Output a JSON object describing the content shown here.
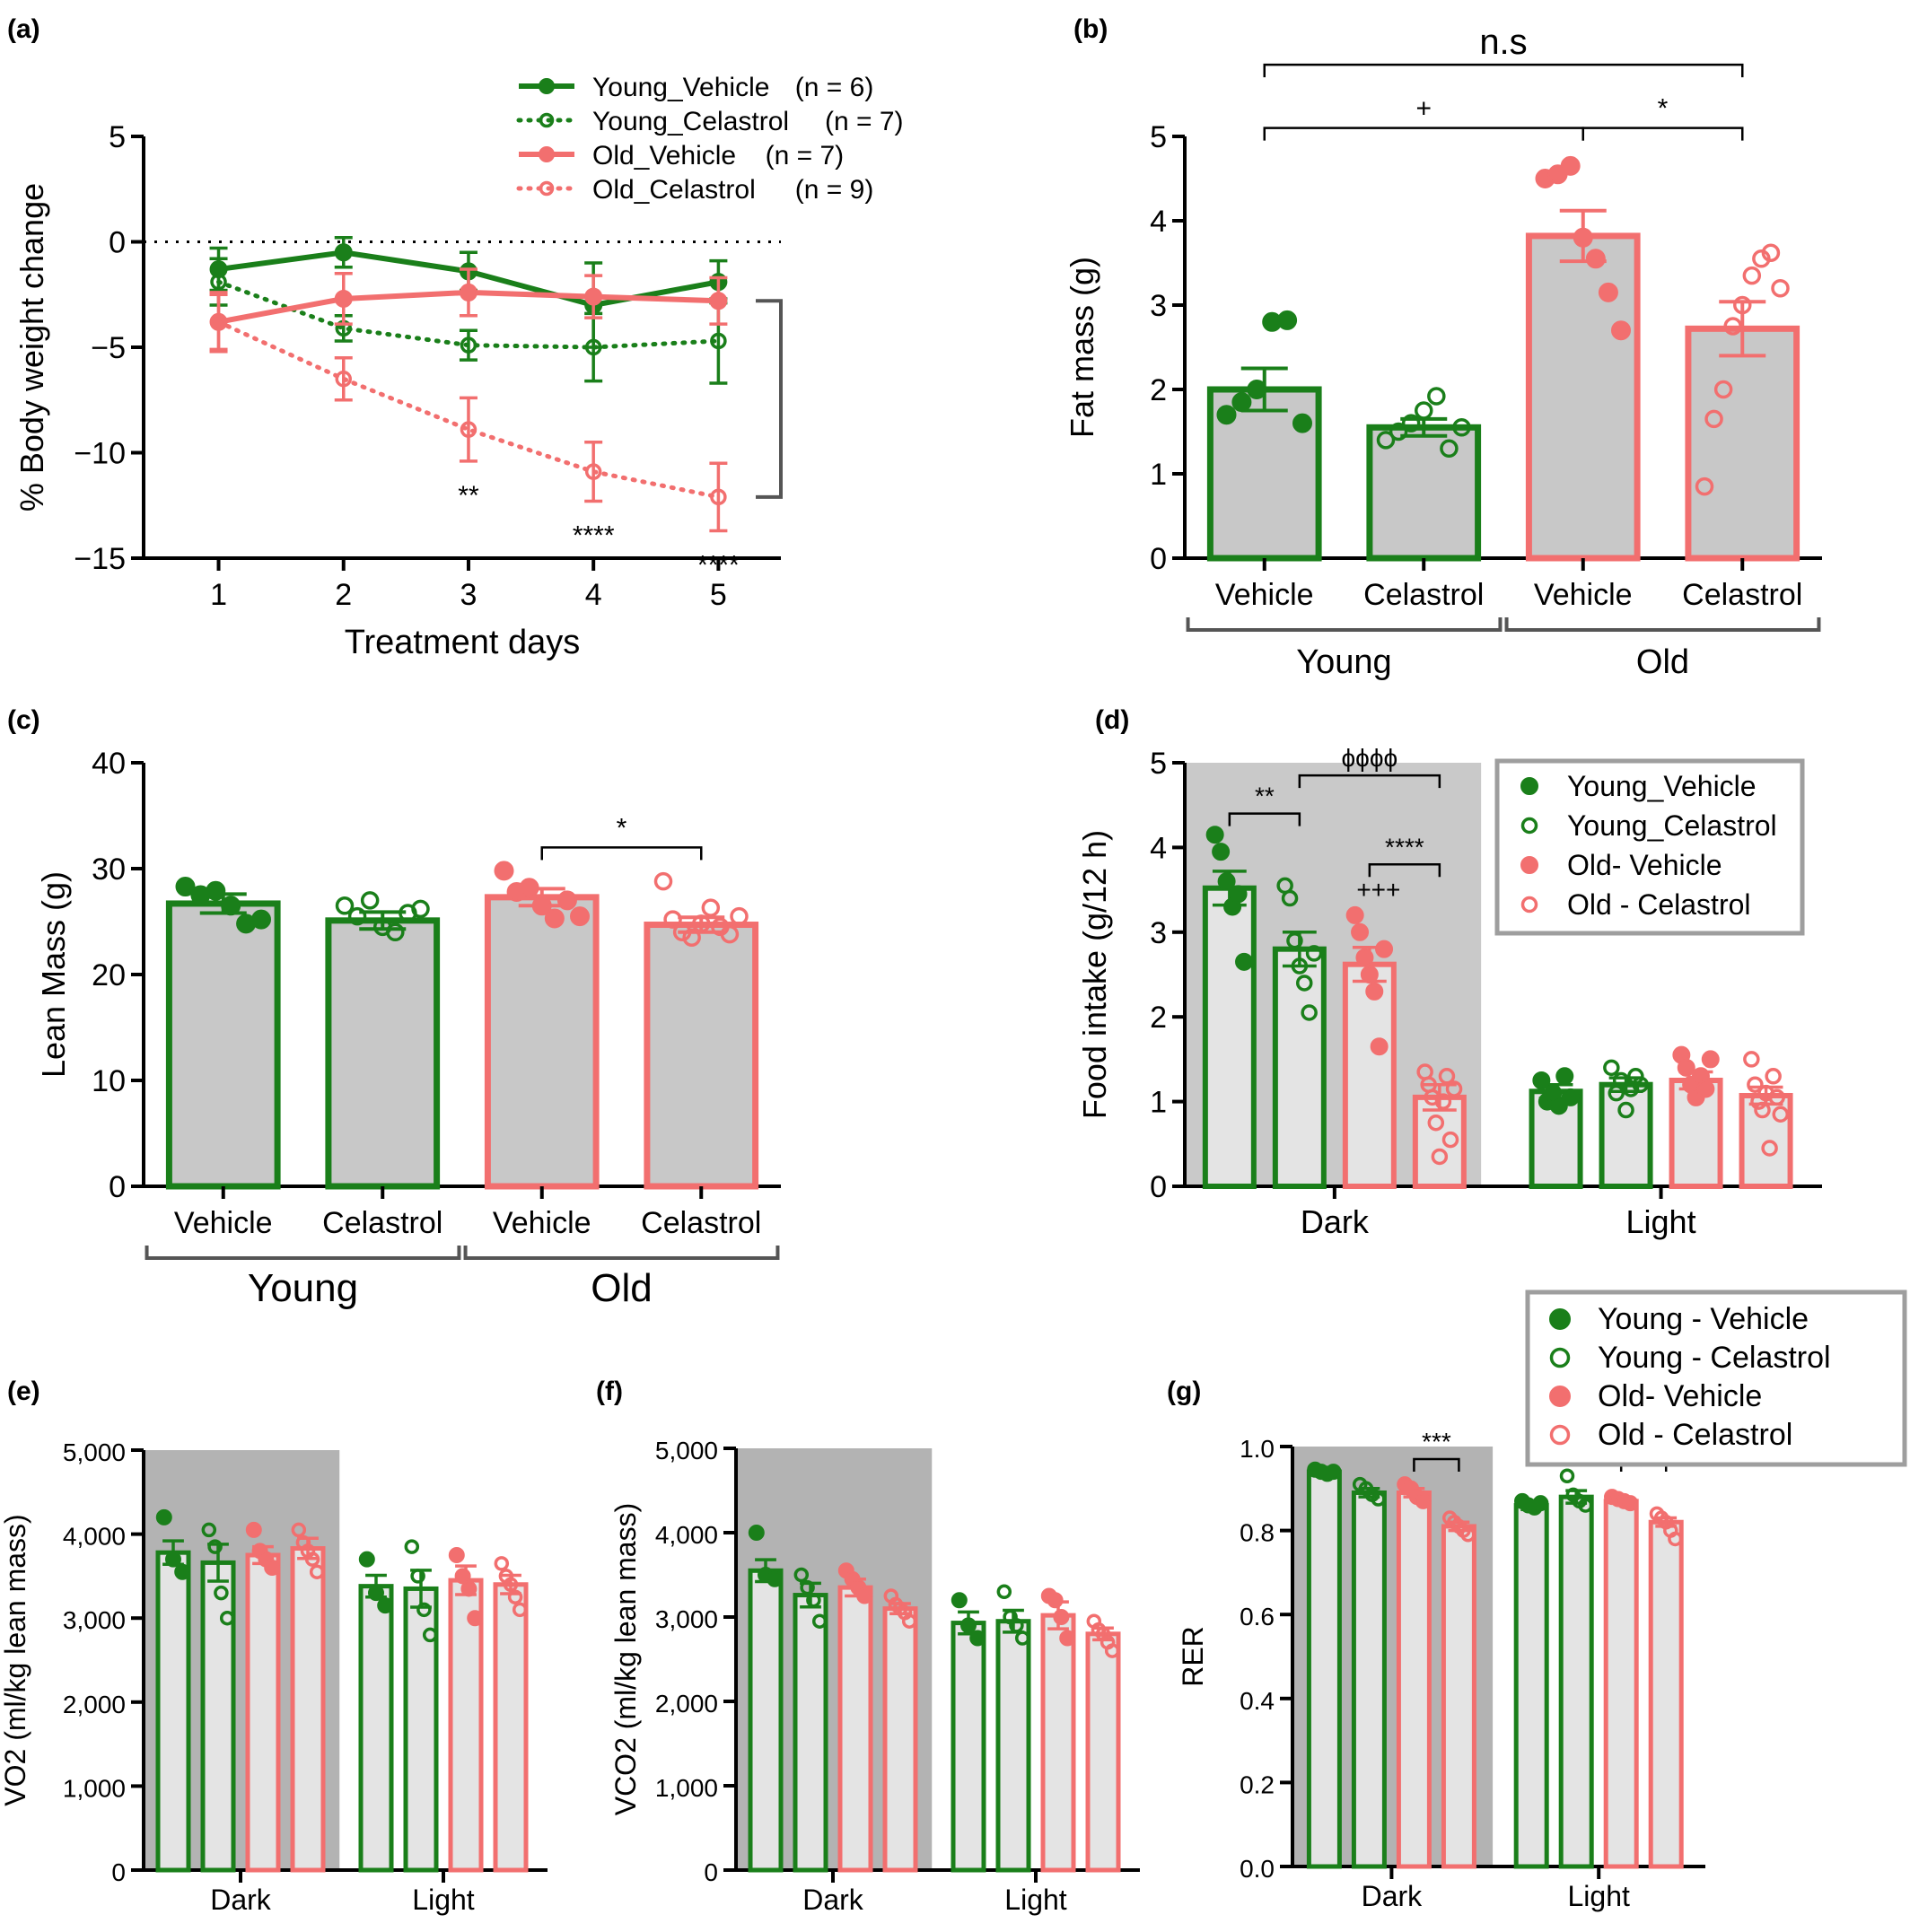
{
  "figure": {
    "panels": [
      "(a)",
      "(b)",
      "(c)",
      "(d)",
      "(e)",
      "(f)",
      "(g)"
    ]
  },
  "colors": {
    "young": "#1a7f1a",
    "old": "#f26f6f",
    "bar_fill": "#c8c8c8",
    "bar_fill_light": "#e4e4e4",
    "dark_shade": "#b3b3b3",
    "bracket": "#555555"
  },
  "chart_data": [
    {
      "panel": "(a)",
      "type": "line",
      "xlabel": "Treatment days",
      "ylabel": "% Body weight change",
      "x": [
        1,
        2,
        3,
        4,
        5
      ],
      "xlim": [
        0.4,
        5.5
      ],
      "ylim": [
        -15,
        5
      ],
      "yticks": [
        "5",
        "0",
        "−5",
        "−10",
        "−15"
      ],
      "xticks": [
        "1",
        "2",
        "3",
        "4",
        "5"
      ],
      "reference_line": 0,
      "series": [
        {
          "name": "Young_Vehicle",
          "n_label": "(n = 6)",
          "group": "young",
          "style": "solid",
          "marker": "filled",
          "values": [
            -1.3,
            -0.5,
            -1.4,
            -3.0,
            -1.9
          ],
          "error": [
            1.0,
            0.7,
            0.9,
            2.0,
            1.0
          ]
        },
        {
          "name": "Young_Celastrol",
          "n_label": "(n = 7)",
          "group": "young",
          "style": "dotted",
          "marker": "open",
          "values": [
            -1.9,
            -4.1,
            -4.9,
            -5.0,
            -4.7
          ],
          "error": [
            1.1,
            0.6,
            0.7,
            1.6,
            2.0
          ]
        },
        {
          "name": "Old_Vehicle",
          "n_label": "(n = 7)",
          "group": "old",
          "style": "solid",
          "marker": "filled",
          "values": [
            -3.8,
            -2.7,
            -2.4,
            -2.6,
            -2.8
          ],
          "error": [
            1.3,
            1.2,
            1.1,
            1.0,
            1.1
          ]
        },
        {
          "name": "Old_Celastrol",
          "n_label": "(n = 9)",
          "group": "old",
          "style": "dotted",
          "marker": "open",
          "values": [
            -3.8,
            -6.5,
            -8.9,
            -10.9,
            -12.1
          ],
          "error": [
            1.4,
            1.0,
            1.5,
            1.4,
            1.6
          ]
        }
      ],
      "annotations": [
        {
          "x": 3,
          "text": "**"
        },
        {
          "x": 4,
          "text": "****"
        },
        {
          "x": 5,
          "text": "****"
        }
      ]
    },
    {
      "panel": "(b)",
      "type": "bar",
      "ylabel": "Fat mass (g)",
      "ylim": [
        0,
        5
      ],
      "yticks": [
        "0",
        "1",
        "2",
        "3",
        "4",
        "5"
      ],
      "categories": [
        "Vehicle",
        "Celastrol",
        "Vehicle",
        "Celastrol"
      ],
      "groups": [
        {
          "label": "Young",
          "span": [
            0,
            1
          ]
        },
        {
          "label": "Old",
          "span": [
            2,
            3
          ]
        }
      ],
      "bar_groups": [
        "young",
        "young",
        "old",
        "old"
      ],
      "markers": [
        "filled",
        "open",
        "filled",
        "open"
      ],
      "values": [
        2.0,
        1.55,
        3.82,
        2.72
      ],
      "error": [
        0.25,
        0.1,
        0.3,
        0.32
      ],
      "points": [
        [
          1.7,
          1.85,
          2.0,
          2.8,
          2.82,
          1.6
        ],
        [
          1.4,
          1.5,
          1.6,
          1.75,
          1.92,
          1.3,
          1.55
        ],
        [
          4.5,
          4.55,
          4.65,
          3.8,
          3.55,
          3.15,
          2.7
        ],
        [
          0.85,
          1.65,
          2.0,
          2.75,
          3.0,
          3.35,
          3.55,
          3.62,
          3.2
        ]
      ],
      "brackets": [
        {
          "from": 0,
          "to": 3,
          "label": "n.s",
          "level": 5.85
        },
        {
          "from": 0,
          "to": 2,
          "label": "+",
          "level": 5.1
        },
        {
          "from": 2,
          "to": 3,
          "label": "*",
          "level": 5.1
        }
      ]
    },
    {
      "panel": "(c)",
      "type": "bar",
      "ylabel": "Lean Mass (g)",
      "ylim": [
        0,
        40
      ],
      "yticks": [
        "0",
        "10",
        "20",
        "30",
        "40"
      ],
      "categories": [
        "Vehicle",
        "Celastrol",
        "Vehicle",
        "Celastrol"
      ],
      "groups": [
        {
          "label": "Young",
          "span": [
            0,
            1
          ]
        },
        {
          "label": "Old",
          "span": [
            2,
            3
          ]
        }
      ],
      "bar_groups": [
        "young",
        "young",
        "old",
        "old"
      ],
      "markers": [
        "filled",
        "open",
        "filled",
        "open"
      ],
      "values": [
        26.7,
        25.1,
        27.3,
        24.7
      ],
      "error": [
        0.9,
        0.8,
        0.8,
        0.7
      ],
      "points": [
        [
          28.3,
          27.5,
          27.9,
          26.5,
          24.8,
          25.2
        ],
        [
          26.5,
          25.5,
          27.0,
          24.5,
          24.0,
          25.8,
          26.2
        ],
        [
          29.8,
          27.8,
          28.2,
          26.5,
          25.3,
          27.0,
          25.5
        ],
        [
          28.8,
          25.2,
          24.0,
          23.5,
          24.8,
          26.3,
          24.5,
          23.8,
          25.5
        ]
      ],
      "brackets": [
        {
          "from": 2,
          "to": 3,
          "label": "*",
          "level": 32
        }
      ]
    },
    {
      "panel": "(d)",
      "type": "bar",
      "ylabel": "Food intake (g/12 h)",
      "ylim": [
        0,
        5
      ],
      "yticks": [
        "0",
        "1",
        "2",
        "3",
        "4",
        "5"
      ],
      "categories": [
        "Dark",
        "Light"
      ],
      "shaded_category": "Dark",
      "series": [
        {
          "name": "Young_Vehicle",
          "group": "young",
          "marker": "filled",
          "values": [
            3.52,
            1.12
          ],
          "error": [
            0.2,
            0.08
          ],
          "points": [
            [
              4.15,
              3.95,
              3.6,
              3.3,
              3.45,
              2.65
            ],
            [
              1.25,
              1.0,
              1.1,
              0.95,
              1.3,
              1.05
            ]
          ]
        },
        {
          "name": "Young_Celastrol",
          "group": "young",
          "marker": "open",
          "values": [
            2.8,
            1.2
          ],
          "error": [
            0.2,
            0.08
          ],
          "points": [
            [
              3.55,
              3.4,
              2.9,
              2.6,
              2.4,
              2.05,
              2.75
            ],
            [
              1.4,
              1.1,
              1.25,
              0.9,
              1.15,
              1.3,
              1.2
            ]
          ]
        },
        {
          "name": "Old- Vehicle",
          "group": "old",
          "marker": "filled",
          "values": [
            2.62,
            1.25
          ],
          "error": [
            0.2,
            0.1
          ],
          "points": [
            [
              3.2,
              3.0,
              2.7,
              2.5,
              2.3,
              1.65,
              2.8
            ],
            [
              1.55,
              1.4,
              1.2,
              1.05,
              1.3,
              1.15,
              1.5
            ]
          ]
        },
        {
          "name": "Old - Celastrol",
          "group": "old",
          "marker": "open",
          "values": [
            1.05,
            1.07
          ],
          "error": [
            0.15,
            0.1
          ],
          "points": [
            [
              1.35,
              1.2,
              1.05,
              0.75,
              0.35,
              1.0,
              1.3,
              0.55,
              1.15
            ],
            [
              1.5,
              1.2,
              1.0,
              0.9,
              1.1,
              0.45,
              1.3,
              1.05,
              0.85
            ]
          ]
        }
      ],
      "legend": [
        "Young_Vehicle",
        "Young_Celastrol",
        "Old- Vehicle",
        "Old - Celastrol"
      ],
      "legend_position": "top-right",
      "brackets": [
        {
          "cat": 0,
          "from": 0,
          "to": 1,
          "label": "**",
          "level": 4.4
        },
        {
          "cat": 0,
          "from": 1,
          "to": 3,
          "label": "ϕϕϕϕ",
          "level": 4.85
        },
        {
          "cat": 0,
          "from": 2,
          "to": 3,
          "label": "****",
          "level": 3.8
        }
      ],
      "annotations": [
        {
          "cat": 0,
          "bar": 2,
          "text": "+++",
          "level": 3.4
        }
      ]
    },
    {
      "panel": "(e)",
      "type": "bar",
      "ylabel": "VO2 (ml/kg lean mass)",
      "ylim": [
        0,
        5000
      ],
      "yticks": [
        "0",
        "1,000",
        "2,000",
        "3,000",
        "4,000",
        "5,000"
      ],
      "categories": [
        "Dark",
        "Light"
      ],
      "shaded_category": "Dark",
      "series": [
        {
          "name": "Young - Vehicle",
          "group": "young",
          "marker": "filled",
          "values": [
            3780,
            3380
          ],
          "error": [
            140,
            130
          ],
          "points": [
            [
              4200,
              3700,
              3550
            ],
            [
              3700,
              3300,
              3150
            ]
          ]
        },
        {
          "name": "Young - Celastrol",
          "group": "young",
          "marker": "open",
          "values": [
            3660,
            3350
          ],
          "error": [
            220,
            220
          ],
          "points": [
            [
              4050,
              3850,
              3300,
              3000
            ],
            [
              3850,
              3500,
              3100,
              2800
            ]
          ]
        },
        {
          "name": "Old- Vehicle",
          "group": "old",
          "marker": "filled",
          "values": [
            3750,
            3450
          ],
          "error": [
            100,
            170
          ],
          "points": [
            [
              4050,
              3800,
              3700,
              3600
            ],
            [
              3750,
              3500,
              3350,
              3000
            ]
          ]
        },
        {
          "name": "Old - Celastrol",
          "group": "old",
          "marker": "open",
          "values": [
            3830,
            3400
          ],
          "error": [
            120,
            110
          ],
          "points": [
            [
              4050,
              3900,
              3800,
              3700,
              3550
            ],
            [
              3650,
              3500,
              3400,
              3250,
              3100
            ]
          ]
        }
      ]
    },
    {
      "panel": "(f)",
      "type": "bar",
      "ylabel": "VCO2 (ml/kg lean mass)",
      "ylim": [
        0,
        5000
      ],
      "yticks": [
        "0",
        "1,000",
        "2,000",
        "3,000",
        "4,000",
        "5,000"
      ],
      "categories": [
        "Dark",
        "Light"
      ],
      "shaded_category": "Dark",
      "series": [
        {
          "name": "Young - Vehicle",
          "group": "young",
          "marker": "filled",
          "values": [
            3550,
            2930
          ],
          "error": [
            130,
            130
          ],
          "points": [
            [
              4000,
              3500,
              3450
            ],
            [
              3200,
              2900,
              2750
            ]
          ]
        },
        {
          "name": "Young - Celastrol",
          "group": "young",
          "marker": "open",
          "values": [
            3260,
            2950
          ],
          "error": [
            140,
            130
          ],
          "points": [
            [
              3500,
              3350,
              3200,
              2950
            ],
            [
              3300,
              3000,
              2900,
              2750
            ]
          ]
        },
        {
          "name": "Old- Vehicle",
          "group": "old",
          "marker": "filled",
          "values": [
            3350,
            3020
          ],
          "error": [
            100,
            160
          ],
          "points": [
            [
              3550,
              3450,
              3350,
              3250
            ],
            [
              3250,
              3200,
              3000,
              2750
            ]
          ]
        },
        {
          "name": "Old - Celastrol",
          "group": "old",
          "marker": "open",
          "values": [
            3100,
            2800
          ],
          "error": [
            60,
            70
          ],
          "points": [
            [
              3250,
              3150,
              3100,
              3050,
              2950
            ],
            [
              2950,
              2850,
              2800,
              2700,
              2600
            ]
          ]
        }
      ]
    },
    {
      "panel": "(g)",
      "type": "bar",
      "ylabel": "RER",
      "ylim": [
        0,
        1.0
      ],
      "yticks": [
        "0.0",
        "0.2",
        "0.4",
        "0.6",
        "0.8",
        "1.0"
      ],
      "categories": [
        "Dark",
        "Light"
      ],
      "shaded_category": "Dark",
      "series": [
        {
          "name": "Young - Vehicle",
          "group": "young",
          "marker": "filled",
          "values": [
            0.94,
            0.86
          ],
          "error": [
            0.005,
            0.01
          ],
          "points": [
            [
              0.945,
              0.94,
              0.935,
              0.94
            ],
            [
              0.87,
              0.86,
              0.855,
              0.865
            ]
          ]
        },
        {
          "name": "Young - Celastrol",
          "group": "young",
          "marker": "open",
          "values": [
            0.89,
            0.88
          ],
          "error": [
            0.01,
            0.015
          ],
          "points": [
            [
              0.91,
              0.9,
              0.885,
              0.875
            ],
            [
              0.93,
              0.885,
              0.87,
              0.86
            ]
          ]
        },
        {
          "name": "Old- Vehicle",
          "group": "old",
          "marker": "filled",
          "values": [
            0.89,
            0.87
          ],
          "error": [
            0.01,
            0.005
          ],
          "points": [
            [
              0.91,
              0.9,
              0.88,
              0.87
            ],
            [
              0.88,
              0.875,
              0.87,
              0.865
            ]
          ]
        },
        {
          "name": "Old - Celastrol",
          "group": "old",
          "marker": "open",
          "values": [
            0.81,
            0.82
          ],
          "error": [
            0.01,
            0.01
          ],
          "points": [
            [
              0.83,
              0.82,
              0.81,
              0.8,
              0.79
            ],
            [
              0.84,
              0.83,
              0.82,
              0.8,
              0.78
            ]
          ]
        }
      ],
      "legend": [
        "Young - Vehicle",
        "Young - Celastrol",
        "Old- Vehicle",
        "Old - Celastrol"
      ],
      "legend_position": "top-right",
      "brackets": [
        {
          "cat": 0,
          "from": 2,
          "to": 3,
          "label": "***",
          "level": 0.97
        },
        {
          "cat": 1,
          "from": 2,
          "to": 3,
          "label": "*",
          "level": 0.97
        }
      ]
    }
  ]
}
